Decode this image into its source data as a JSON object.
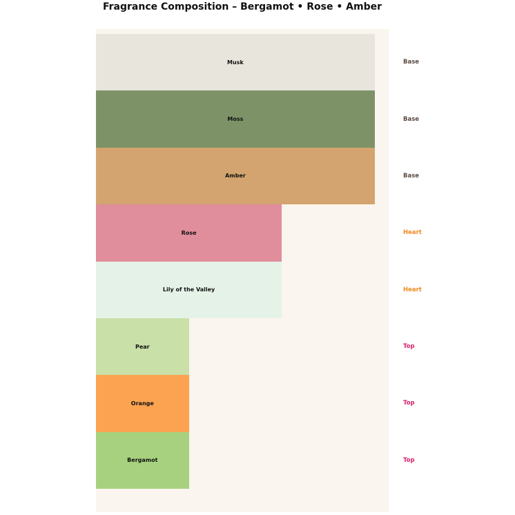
{
  "title": "Fragrance Composition – Bergamot • Rose • Amber",
  "chart_data": {
    "type": "bar",
    "orientation": "horizontal",
    "title": "Fragrance Composition – Bergamot • Rose • Amber",
    "categories": [
      "Musk",
      "Moss",
      "Amber",
      "Rose",
      "Lily of the Valley",
      "Pear",
      "Orange",
      "Bergamot"
    ],
    "values": [
      30,
      30,
      30,
      20,
      20,
      10,
      10,
      10
    ],
    "groups": [
      "Base",
      "Base",
      "Base",
      "Heart",
      "Heart",
      "Top",
      "Top",
      "Top"
    ],
    "bar_colors": [
      "#e8e5dc",
      "#7e9268",
      "#d3a46f",
      "#e08d9c",
      "#e5f2e7",
      "#c9e0a8",
      "#fba351",
      "#a7d17e"
    ],
    "group_label_colors": {
      "Base": "#5d4a3f",
      "Heart": "#ee8a1e",
      "Top": "#d6246e"
    },
    "xlim": [
      0,
      31.5
    ],
    "grid": false,
    "xlabel": "",
    "ylabel": "",
    "legend_position": "right-margin-group-labels",
    "plot_background": "#faf5ee",
    "page_background": "#ffffff"
  }
}
